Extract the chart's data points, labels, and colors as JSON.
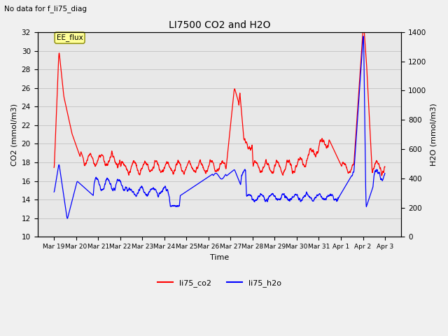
{
  "title": "LI7500 CO2 and H2O",
  "subtitle": "No data for f_li75_diag",
  "xlabel": "Time",
  "ylabel_left": "CO2 (mmol/m3)",
  "ylabel_right": "H2O (mmol/m3)",
  "ylim_left": [
    10,
    32
  ],
  "ylim_right": [
    0,
    1400
  ],
  "yticks_left": [
    10,
    12,
    14,
    16,
    18,
    20,
    22,
    24,
    26,
    28,
    30,
    32
  ],
  "yticks_right": [
    0,
    200,
    400,
    600,
    800,
    1000,
    1200,
    1400
  ],
  "color_co2": "#FF0000",
  "color_h2o": "#0000FF",
  "legend_entries": [
    "li75_co2",
    "li75_h2o"
  ],
  "annotation_text": "EE_flux",
  "bg_color": "#F0F0F0",
  "plot_bg": "#E8E8E8",
  "fig_width": 6.4,
  "fig_height": 4.8,
  "dpi": 100,
  "x_tick_labels": [
    "Mar 19",
    "Mar 20",
    "Mar 21",
    "Mar 22",
    "Mar 23",
    "Mar 24",
    "Mar 25",
    "Mar 26",
    "Mar 27",
    "Mar 28",
    "Mar 29",
    "Mar 30",
    "Mar 31",
    "Apr 1",
    "Apr 2",
    "Apr 3"
  ]
}
